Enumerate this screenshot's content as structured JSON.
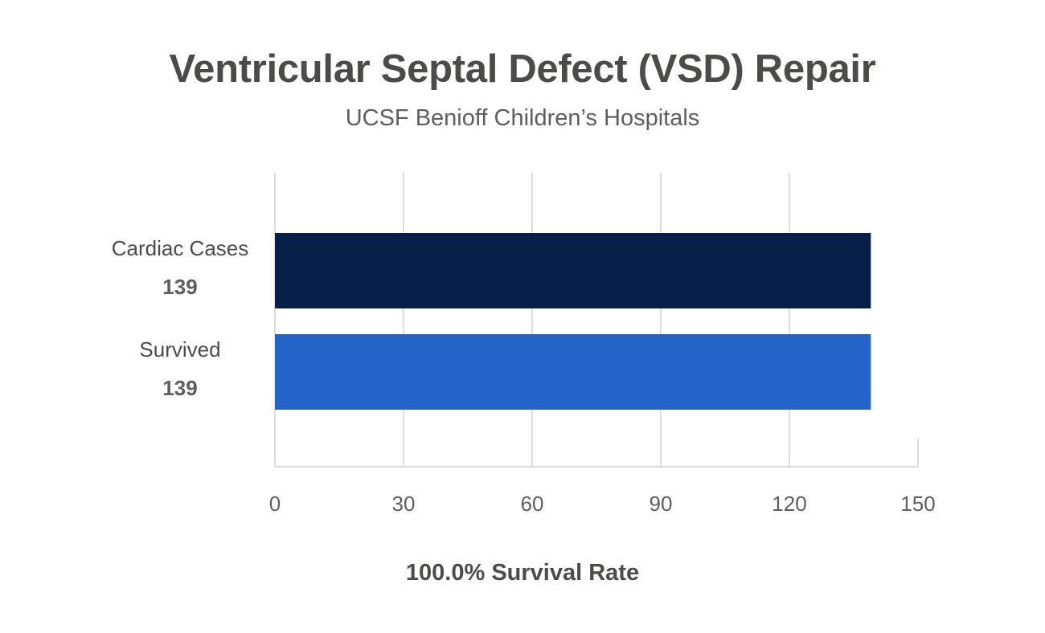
{
  "title": "Ventricular Septal Defect (VSD) Repair",
  "subtitle": "UCSF Benioff Children’s Hospitals",
  "footer": "100.0% Survival Rate",
  "chart_data": {
    "type": "bar",
    "orientation": "horizontal",
    "title": "Ventricular Septal Defect (VSD) Repair",
    "subtitle": "UCSF Benioff Children’s Hospitals",
    "categories": [
      "Cardiac Cases",
      "Survived"
    ],
    "values": [
      139,
      139
    ],
    "value_labels": [
      "139",
      "139"
    ],
    "bar_colors": [
      "#06204a",
      "#2463c7"
    ],
    "xlim": [
      0,
      150
    ],
    "xticks": [
      0,
      30,
      60,
      90,
      120,
      150
    ],
    "xtick_labels": [
      "0",
      "30",
      "60",
      "90",
      "120",
      "150"
    ],
    "xlabel": "",
    "ylabel": "",
    "grid": true,
    "legend": "none",
    "annotation": "100.0% Survival Rate"
  }
}
